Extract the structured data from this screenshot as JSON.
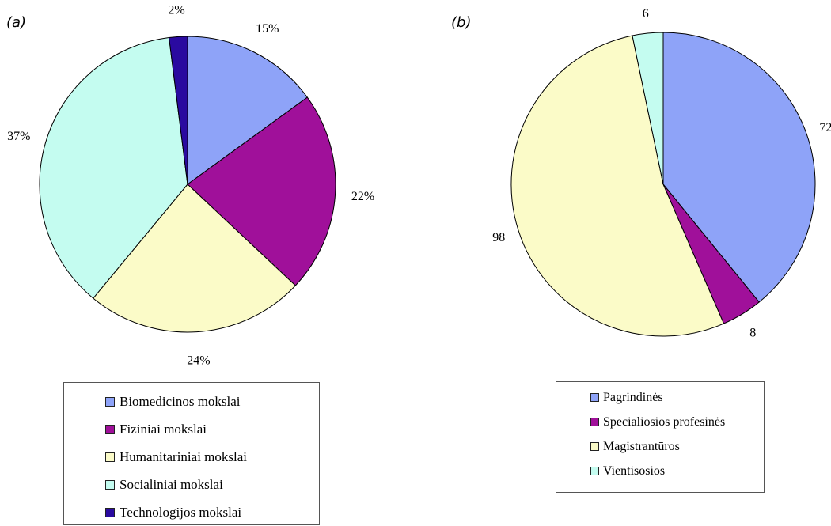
{
  "panels": {
    "a_label": "(a)",
    "b_label": "(b)"
  },
  "chart_data": [
    {
      "type": "pie",
      "title": "",
      "categories": [
        "Biomedicinos mokslai",
        "Fiziniai mokslai",
        "Humanitariniai mokslai",
        "Socialiniai mokslai",
        "Technologijos mokslai"
      ],
      "values": [
        15,
        22,
        24,
        37,
        2
      ],
      "data_labels": [
        "15%",
        "22%",
        "24%",
        "37%",
        "2%"
      ],
      "colors": [
        "#8ea3f8",
        "#a0109a",
        "#fbfbc8",
        "#c4fcf0",
        "#2a0aa0"
      ],
      "legend": "bottom"
    },
    {
      "type": "pie",
      "title": "",
      "categories": [
        "Pagrindinės",
        "Specialiosios profesinės",
        "Magistrantūros",
        "Vientisosios"
      ],
      "values": [
        72,
        8,
        98,
        6
      ],
      "data_labels": [
        "72",
        "8",
        "98",
        "6"
      ],
      "colors": [
        "#8ea3f8",
        "#a0109a",
        "#fbfbc8",
        "#c4fcf0"
      ],
      "legend": "bottom"
    }
  ]
}
